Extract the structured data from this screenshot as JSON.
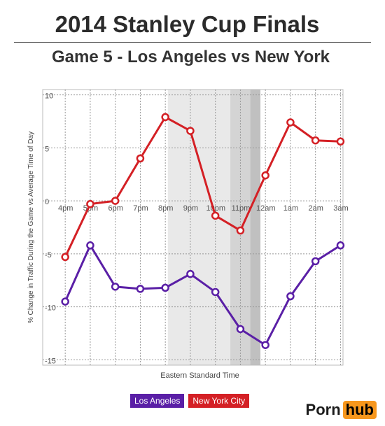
{
  "title": "2014 Stanley Cup Finals",
  "subtitle": "Game 5 - Los Angeles vs New York",
  "colors": {
    "los_angeles": "#5a1fa6",
    "new_york": "#d42025",
    "brand_accent": "#f7971d"
  },
  "brand": {
    "part1": "Porn",
    "part2": "hub"
  },
  "legend": [
    {
      "label": "Los Angeles",
      "color": "#5a1fa6"
    },
    {
      "label": "New York City",
      "color": "#d42025"
    }
  ],
  "chart_data": {
    "type": "line",
    "title": "",
    "xlabel": "Eastern Standard Time",
    "ylabel": "% Change in Traffic During the Game vs Average Time of Day",
    "ylim": [
      -15.5,
      10.5
    ],
    "yticks": [
      10,
      5,
      0,
      -5,
      -10,
      -15
    ],
    "ytick_labels": [
      "10",
      "5",
      "0",
      "-5",
      "-10",
      "-15"
    ],
    "xlim": [
      3,
      15
    ],
    "xticks": [
      4,
      5,
      6,
      7,
      8,
      9,
      10,
      11,
      12,
      13,
      14,
      15
    ],
    "xtick_labels": [
      "4pm",
      "5pm",
      "6pm",
      "7pm",
      "8pm",
      "9pm",
      "10pm",
      "11pm",
      "12am",
      "1am",
      "2am",
      "3am"
    ],
    "shaded_regions": [
      {
        "from": 8,
        "to": 11.7,
        "color": "#e9e9e9"
      },
      {
        "from": 10.5,
        "to": 11.7,
        "color": "#d4d4d4"
      },
      {
        "from": 11.3,
        "to": 11.7,
        "color": "#c0c0c0"
      }
    ],
    "grid": true,
    "legend_position": "bottom-center",
    "series": [
      {
        "name": "Los Angeles",
        "color": "#5a1fa6",
        "points": [
          {
            "x": 3.9,
            "y": -9.5
          },
          {
            "x": 4.9,
            "y": -4.2
          },
          {
            "x": 5.9,
            "y": -8.1
          },
          {
            "x": 6.9,
            "y": -8.3
          },
          {
            "x": 7.9,
            "y": -8.2
          },
          {
            "x": 8.9,
            "y": -6.9
          },
          {
            "x": 9.9,
            "y": -8.6
          },
          {
            "x": 10.9,
            "y": -12.1
          },
          {
            "x": 11.9,
            "y": -13.6
          },
          {
            "x": 12.9,
            "y": -9.0
          },
          {
            "x": 13.9,
            "y": -5.7
          },
          {
            "x": 14.9,
            "y": -4.2
          }
        ]
      },
      {
        "name": "New York City",
        "color": "#d42025",
        "points": [
          {
            "x": 3.9,
            "y": -5.3
          },
          {
            "x": 4.9,
            "y": -0.3
          },
          {
            "x": 5.9,
            "y": 0.0
          },
          {
            "x": 6.9,
            "y": 4.0
          },
          {
            "x": 7.9,
            "y": 7.9
          },
          {
            "x": 8.9,
            "y": 6.6
          },
          {
            "x": 9.9,
            "y": -1.4
          },
          {
            "x": 10.9,
            "y": -2.8
          },
          {
            "x": 11.9,
            "y": 2.4
          },
          {
            "x": 12.9,
            "y": 7.4
          },
          {
            "x": 13.9,
            "y": 5.7
          },
          {
            "x": 14.9,
            "y": 5.6
          }
        ]
      }
    ]
  }
}
